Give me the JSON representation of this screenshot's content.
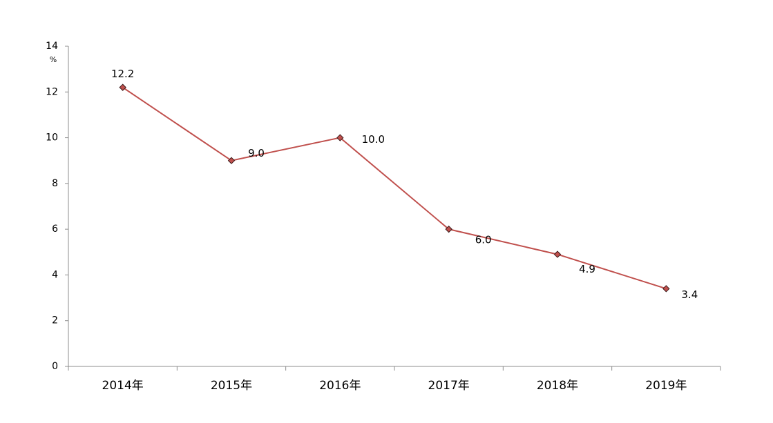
{
  "chart_data": {
    "type": "line",
    "ylabel": "%",
    "categories": [
      "2014年",
      "2015年",
      "2016年",
      "2017年",
      "2018年",
      "2019年"
    ],
    "series": [
      {
        "name": null,
        "color": "#c0504d",
        "values": [
          12.2,
          9,
          10,
          6,
          4.9,
          3.4
        ],
        "value_labels": [
          "12.2",
          "9.0",
          "10.0",
          "6.0",
          "4.9",
          "3.4"
        ]
      }
    ],
    "ylim": [
      0,
      14
    ],
    "yticks": [
      0,
      2,
      4,
      6,
      8,
      10,
      12,
      14
    ],
    "grid": false
  }
}
